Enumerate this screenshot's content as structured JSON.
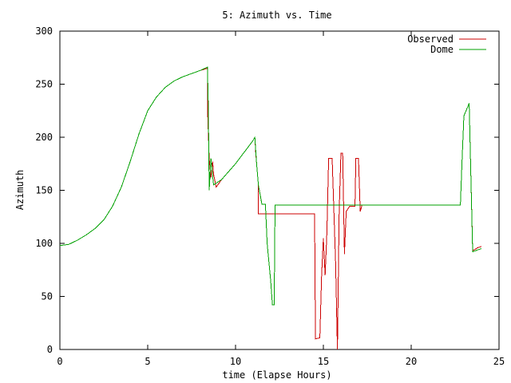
{
  "chart_data": {
    "type": "line",
    "title": "5: Azimuth vs. Time",
    "xlabel": "time (Elapse Hours)",
    "ylabel": "Azimuth",
    "xlim": [
      0,
      25
    ],
    "ylim": [
      0,
      300
    ],
    "xticks": [
      0,
      5,
      10,
      15,
      20,
      25
    ],
    "yticks": [
      0,
      50,
      100,
      150,
      200,
      250,
      300
    ],
    "grid": false,
    "legend_position": "top-right",
    "series": [
      {
        "name": "Observed",
        "color": "#cc0000",
        "points": [
          [
            0,
            98
          ],
          [
            0.5,
            99
          ],
          [
            1,
            103
          ],
          [
            1.5,
            108
          ],
          [
            2,
            114
          ],
          [
            2.5,
            122
          ],
          [
            3,
            135
          ],
          [
            3.5,
            153
          ],
          [
            4,
            177
          ],
          [
            4.5,
            203
          ],
          [
            5,
            225
          ],
          [
            5.5,
            238
          ],
          [
            6,
            247
          ],
          [
            6.5,
            253
          ],
          [
            7,
            257
          ],
          [
            7.5,
            260
          ],
          [
            8,
            263
          ],
          [
            8.4,
            265
          ],
          [
            8.42,
            220
          ],
          [
            8.5,
            180
          ],
          [
            8.6,
            162
          ],
          [
            8.7,
            177
          ],
          [
            8.75,
            165
          ],
          [
            8.9,
            153
          ],
          [
            9.2,
            160
          ],
          [
            10,
            175
          ],
          [
            11,
            197
          ],
          [
            11.1,
            200
          ],
          [
            11.15,
            185
          ],
          [
            11.3,
            155
          ],
          [
            11.3,
            128
          ],
          [
            12,
            128
          ],
          [
            13,
            128
          ],
          [
            14,
            128
          ],
          [
            14.5,
            128
          ],
          [
            14.55,
            10
          ],
          [
            14.8,
            11
          ],
          [
            14.9,
            70
          ],
          [
            15,
            105
          ],
          [
            15.1,
            70
          ],
          [
            15.2,
            110
          ],
          [
            15.3,
            180
          ],
          [
            15.5,
            180
          ],
          [
            15.6,
            130
          ],
          [
            15.7,
            80
          ],
          [
            15.8,
            0
          ],
          [
            15.9,
            130
          ],
          [
            16.0,
            185
          ],
          [
            16.1,
            185
          ],
          [
            16.2,
            90
          ],
          [
            16.3,
            130
          ],
          [
            16.5,
            135
          ],
          [
            16.8,
            135
          ],
          [
            16.85,
            180
          ],
          [
            17.0,
            180
          ],
          [
            17.1,
            130
          ],
          [
            17.2,
            136
          ],
          [
            17.5,
            136
          ],
          [
            18,
            136
          ],
          [
            20,
            136
          ],
          [
            22,
            136
          ],
          [
            22.8,
            136
          ],
          [
            22.9,
            180
          ],
          [
            23.0,
            220
          ],
          [
            23.3,
            232
          ],
          [
            23.5,
            93
          ],
          [
            23.8,
            96
          ],
          [
            24,
            97
          ]
        ]
      },
      {
        "name": "Dome",
        "color": "#00a000",
        "points": [
          [
            0,
            98
          ],
          [
            0.5,
            99
          ],
          [
            1,
            103
          ],
          [
            1.5,
            108
          ],
          [
            2,
            114
          ],
          [
            2.5,
            122
          ],
          [
            3,
            135
          ],
          [
            3.5,
            153
          ],
          [
            4,
            177
          ],
          [
            4.5,
            203
          ],
          [
            5,
            225
          ],
          [
            5.5,
            238
          ],
          [
            6,
            247
          ],
          [
            6.5,
            253
          ],
          [
            7,
            257
          ],
          [
            7.5,
            260
          ],
          [
            8,
            263
          ],
          [
            8.4,
            266
          ],
          [
            8.45,
            230
          ],
          [
            8.5,
            150
          ],
          [
            8.6,
            180
          ],
          [
            8.75,
            155
          ],
          [
            9.2,
            160
          ],
          [
            10,
            175
          ],
          [
            11,
            197
          ],
          [
            11.1,
            200
          ],
          [
            11.2,
            175
          ],
          [
            11.3,
            155
          ],
          [
            11.5,
            137
          ],
          [
            11.7,
            137
          ],
          [
            11.8,
            100
          ],
          [
            12.0,
            65
          ],
          [
            12.1,
            42
          ],
          [
            12.2,
            42
          ],
          [
            12.25,
            136
          ],
          [
            13,
            136
          ],
          [
            14,
            136
          ],
          [
            15,
            136
          ],
          [
            16,
            136
          ],
          [
            17,
            136
          ],
          [
            18,
            136
          ],
          [
            20,
            136
          ],
          [
            22,
            136
          ],
          [
            22.8,
            136
          ],
          [
            22.9,
            180
          ],
          [
            23.0,
            220
          ],
          [
            23.3,
            232
          ],
          [
            23.5,
            92
          ],
          [
            23.8,
            94
          ],
          [
            24,
            95
          ]
        ]
      }
    ]
  }
}
